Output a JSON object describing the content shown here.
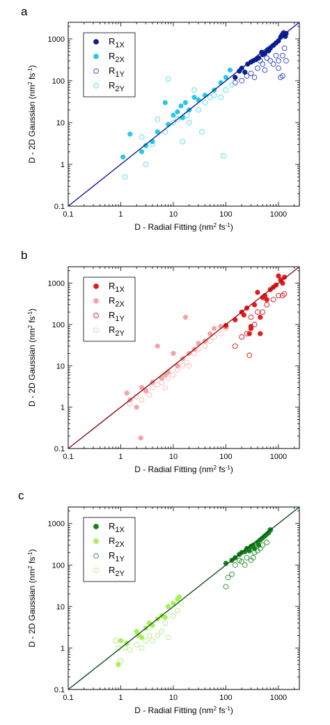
{
  "chart_data": [
    {
      "type": "scatter",
      "panel_label": "a",
      "xlabel": "D - Radial Fitting (nm² fs⁻¹)",
      "ylabel": "D - 2D Gaussian (nm² fs⁻¹)",
      "xscale": "log",
      "yscale": "log",
      "xlim": [
        0.1,
        2500
      ],
      "ylim": [
        0.1,
        2500
      ],
      "x_ticks": [
        "0.1",
        "1",
        "10",
        "100",
        "1000"
      ],
      "y_ticks": [
        "0.1",
        "1",
        "10",
        "100",
        "1000"
      ],
      "grid": false,
      "legend_position": "top-left",
      "line": {
        "x": [
          0.1,
          2500
        ],
        "y": [
          0.1,
          2500
        ],
        "color": "#0a1f8f"
      },
      "series": [
        {
          "name": "R1X",
          "marker": "filled",
          "color": "#0a1f8f",
          "x": [
            150,
            180,
            200,
            230,
            260,
            300,
            330,
            370,
            420,
            480,
            550,
            620,
            700,
            800,
            900,
            1000,
            1100,
            1150,
            1200,
            1250,
            1300,
            1350,
            1400,
            500,
            650
          ],
          "y": [
            120,
            170,
            200,
            160,
            250,
            280,
            300,
            320,
            350,
            480,
            450,
            550,
            600,
            700,
            800,
            900,
            1100,
            1200,
            1300,
            1400,
            1250,
            1150,
            1350,
            420,
            520
          ]
        },
        {
          "name": "R2X",
          "marker": "filled",
          "color": "#29c8e8",
          "x": [
            1.1,
            1.5,
            2.5,
            3.0,
            4.0,
            5.0,
            7.0,
            8.0,
            10,
            12,
            14,
            15,
            17,
            20,
            25,
            30,
            40,
            60,
            80,
            100,
            120
          ],
          "y": [
            1.5,
            5.3,
            2.0,
            2.8,
            3.5,
            6.0,
            30,
            9.0,
            15,
            18,
            25,
            13,
            30,
            20,
            40,
            35,
            45,
            60,
            90,
            120,
            180
          ]
        },
        {
          "name": "R1Y",
          "marker": "open",
          "color": "#3f4fc9",
          "x": [
            150,
            200,
            250,
            300,
            350,
            400,
            450,
            500,
            550,
            600,
            700,
            800,
            900,
            1000,
            1100,
            1200,
            1300,
            1400,
            1000,
            1200
          ],
          "y": [
            90,
            100,
            130,
            150,
            120,
            200,
            300,
            250,
            180,
            350,
            300,
            250,
            400,
            300,
            120,
            130,
            600,
            300,
            200,
            400
          ]
        },
        {
          "name": "R2Y",
          "marker": "open",
          "color": "#66dcf2",
          "x": [
            1.2,
            2.5,
            3.0,
            4.0,
            5.0,
            7.0,
            8.0,
            10,
            12,
            15,
            18,
            20,
            25,
            30,
            35,
            40,
            50,
            60,
            80,
            90,
            100,
            130
          ],
          "y": [
            0.5,
            4.5,
            1.0,
            3.0,
            12,
            6.0,
            110,
            10,
            12,
            3.5,
            15,
            10,
            60,
            20,
            6.0,
            30,
            40,
            45,
            40,
            1.6,
            60,
            80
          ]
        }
      ]
    },
    {
      "type": "scatter",
      "panel_label": "b",
      "xlabel": "D - Radial Fitting (nm² fs⁻¹)",
      "ylabel": "D - 2D Gaussian (nm² fs⁻¹)",
      "xscale": "log",
      "yscale": "log",
      "xlim": [
        0.1,
        2500
      ],
      "ylim": [
        0.1,
        2500
      ],
      "x_ticks": [
        "0.1",
        "1",
        "10",
        "100",
        "1000"
      ],
      "y_ticks": [
        "0.1",
        "1",
        "10",
        "100",
        "1000"
      ],
      "grid": false,
      "legend_position": "top-left",
      "line": {
        "x": [
          0.1,
          2500
        ],
        "y": [
          0.1,
          2500
        ],
        "color": "#8a1212"
      },
      "series": [
        {
          "name": "R1X",
          "marker": "filled",
          "color": "#e51a1a",
          "x": [
            100,
            150,
            200,
            220,
            250,
            280,
            300,
            350,
            400,
            450,
            500,
            550,
            600,
            700,
            800,
            900,
            1000,
            1100,
            1200,
            1300,
            450,
            300
          ],
          "y": [
            95,
            130,
            200,
            170,
            250,
            60,
            90,
            300,
            600,
            60,
            450,
            500,
            400,
            700,
            800,
            900,
            1500,
            1200,
            1000,
            1400,
            150,
            80
          ]
        },
        {
          "name": "R2X",
          "marker": "filled",
          "color": "#f5a3a6",
          "x": [
            1.3,
            1.5,
            2.0,
            2.5,
            3.0,
            4.0,
            5.0,
            6.0,
            7.0,
            8.0,
            10,
            12,
            15,
            17,
            20,
            25,
            30,
            40,
            50,
            60,
            80,
            2.4
          ],
          "y": [
            2.2,
            1.5,
            1.0,
            3.0,
            2.5,
            4.0,
            30,
            5.0,
            6.0,
            7.0,
            20,
            10,
            15,
            150,
            20,
            25,
            35,
            40,
            60,
            80,
            90,
            0.18
          ]
        },
        {
          "name": "R1Y",
          "marker": "open",
          "color": "#d9262a",
          "x": [
            100,
            150,
            200,
            250,
            280,
            300,
            350,
            400,
            500,
            600,
            800,
            1000,
            1200,
            1300
          ],
          "y": [
            90,
            30,
            50,
            60,
            18,
            150,
            100,
            200,
            200,
            300,
            400,
            500,
            500,
            550
          ]
        },
        {
          "name": "R2Y",
          "marker": "open",
          "color": "#f7bfc2",
          "x": [
            1.5,
            2.0,
            2.5,
            3.0,
            3.5,
            4.0,
            5.0,
            6.0,
            7.0,
            8.0,
            10,
            12,
            15,
            18,
            20,
            25,
            30,
            40,
            50,
            60,
            80,
            100
          ],
          "y": [
            1.2,
            1.8,
            1.5,
            2.5,
            2.0,
            3.0,
            3.5,
            4.0,
            3.0,
            5.0,
            6.0,
            8.0,
            10,
            12,
            10,
            20,
            25,
            30,
            40,
            50,
            60,
            80
          ]
        }
      ]
    },
    {
      "type": "scatter",
      "panel_label": "c",
      "xlabel": "D - Radial Fitting (nm² fs⁻¹)",
      "ylabel": "D - 2D Gaussian (nm² fs⁻¹)",
      "xscale": "log",
      "yscale": "log",
      "xlim": [
        0.1,
        2500
      ],
      "ylim": [
        0.1,
        2500
      ],
      "x_ticks": [
        "0.1",
        "1",
        "10",
        "100",
        "1000"
      ],
      "y_ticks": [
        "0.1",
        "1",
        "10",
        "100",
        "1000"
      ],
      "grid": false,
      "legend_position": "top-left",
      "line": {
        "x": [
          0.1,
          2500
        ],
        "y": [
          0.1,
          2500
        ],
        "color": "#0f4d16"
      },
      "series": [
        {
          "name": "R1X",
          "marker": "filled",
          "color": "#12801d",
          "x": [
            100,
            130,
            150,
            180,
            200,
            230,
            250,
            280,
            300,
            330,
            350,
            400,
            420,
            450,
            500,
            550,
            600,
            650,
            700
          ],
          "y": [
            110,
            130,
            150,
            180,
            200,
            210,
            250,
            220,
            280,
            300,
            250,
            350,
            300,
            400,
            450,
            500,
            550,
            600,
            700
          ]
        },
        {
          "name": "R2X",
          "marker": "filled",
          "color": "#a6f05a",
          "x": [
            0.9,
            1.0,
            1.3,
            2.0,
            2.5,
            3.0,
            3.5,
            4.0,
            5.0,
            6.0,
            7.0,
            8.0,
            10,
            12,
            13,
            2.2
          ],
          "y": [
            0.4,
            1.5,
            1.3,
            2.5,
            1.8,
            3.0,
            4.0,
            3.5,
            5.0,
            6.0,
            5.5,
            10,
            12,
            15,
            17,
            2.0
          ]
        },
        {
          "name": "R1Y",
          "marker": "open",
          "color": "#3a9a44",
          "x": [
            100,
            110,
            130,
            150,
            180,
            200,
            230,
            250,
            300,
            330,
            350,
            400,
            450,
            500,
            600,
            700
          ],
          "y": [
            30,
            50,
            60,
            100,
            130,
            120,
            100,
            150,
            130,
            150,
            200,
            220,
            250,
            300,
            350,
            700
          ]
        },
        {
          "name": "R2Y",
          "marker": "open",
          "color": "#b8ec86",
          "x": [
            0.8,
            1.0,
            1.2,
            1.5,
            2.0,
            2.5,
            3.0,
            3.5,
            4.0,
            5.0,
            6.0,
            7.0,
            8.0,
            10,
            12,
            14,
            0.9
          ],
          "y": [
            1.5,
            0.5,
            1.0,
            0.9,
            1.2,
            1.0,
            1.5,
            2.0,
            1.5,
            2.0,
            2.5,
            4.0,
            1.8,
            6.0,
            8.0,
            12,
            1.0
          ]
        }
      ]
    }
  ]
}
